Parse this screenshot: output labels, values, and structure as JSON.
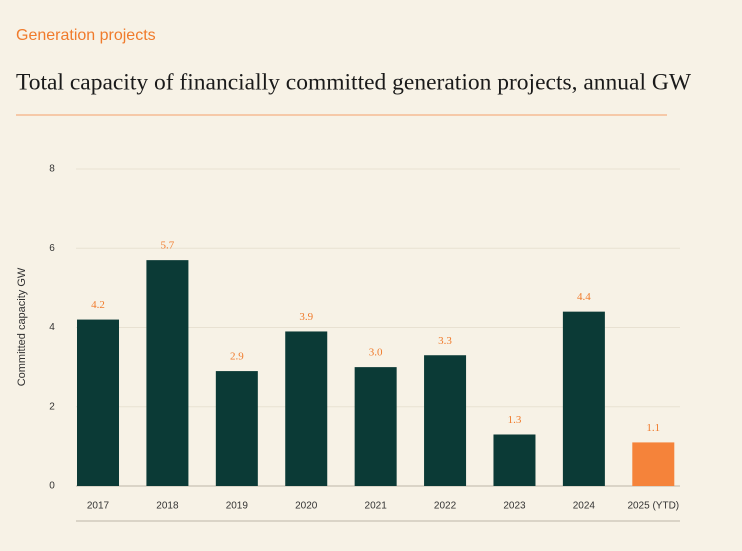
{
  "chart_data": {
    "type": "bar",
    "section_label": "Generation projects",
    "title": "Total capacity of financially committed generation projects, annual GW",
    "y_label": "Committed capacity GW",
    "categories": [
      "2017",
      "2018",
      "2019",
      "2020",
      "2021",
      "2022",
      "2023",
      "2024",
      "2025 (YTD)"
    ],
    "values": [
      4.2,
      5.7,
      2.9,
      3.9,
      3.0,
      3.3,
      1.3,
      4.4,
      1.1
    ],
    "value_labels": [
      "4.2",
      "5.7",
      "2.9",
      "3.9",
      "3.0",
      "3.3",
      "1.3",
      "4.4",
      "1.1"
    ],
    "colors": [
      "#0b3a36",
      "#0b3a36",
      "#0b3a36",
      "#0b3a36",
      "#0b3a36",
      "#0b3a36",
      "#0b3a36",
      "#0b3a36",
      "#f5833a"
    ],
    "ylim": [
      0,
      8
    ],
    "yticks": [
      0,
      2,
      4,
      6,
      8
    ],
    "grid": true
  }
}
